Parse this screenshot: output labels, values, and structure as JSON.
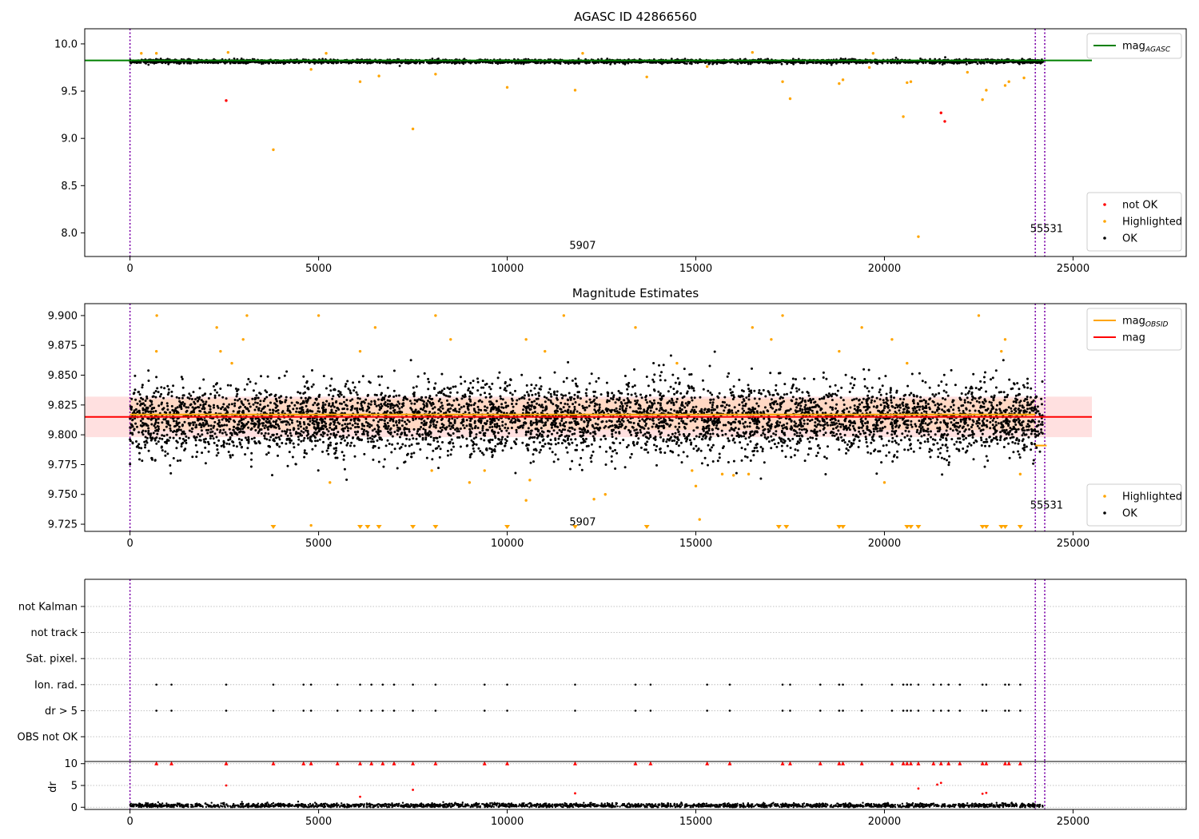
{
  "chart_data": [
    {
      "type": "scatter",
      "title": "AGASC ID 42866560",
      "xlim": [
        -1200,
        28000
      ],
      "ylim": [
        7.75,
        10.16
      ],
      "xticks": [
        0,
        5000,
        10000,
        15000,
        20000,
        25000
      ],
      "yticks": [
        8.0,
        8.5,
        9.0,
        9.5,
        10.0
      ],
      "ytick_labels": [
        "8.0",
        "8.5",
        "9.0",
        "9.5",
        "10.0"
      ],
      "grid": false,
      "vlines": [
        0,
        24000,
        24250
      ],
      "vline_color": "#7b00a8",
      "annotations": [
        {
          "text": "5907",
          "x": 12000,
          "y": 7.83
        },
        {
          "text": "55531",
          "x": 24300,
          "y": 8.01
        }
      ],
      "lines": [
        {
          "name": "mag_AGASC",
          "label_main": "mag",
          "label_sub": "AGASC",
          "color": "#008000",
          "y": 9.825,
          "x_range": [
            -1200,
            25500
          ]
        }
      ],
      "ok_band": {
        "name": "OK",
        "color": "#000000",
        "y_mid": 9.815,
        "y_spread": 0.02,
        "x_range": [
          0,
          24200
        ],
        "n": 3200
      },
      "points": [
        {
          "series": "Highlighted",
          "color": "#ffa500",
          "data": [
            [
              3800,
              8.88
            ],
            [
              7500,
              9.1
            ],
            [
              8100,
              9.68
            ],
            [
              10000,
              9.54
            ],
            [
              11800,
              9.51
            ],
            [
              13700,
              9.65
            ],
            [
              15300,
              9.76
            ],
            [
              17300,
              9.6
            ],
            [
              17500,
              9.42
            ],
            [
              18800,
              9.58
            ],
            [
              18900,
              9.62
            ],
            [
              19600,
              9.75
            ],
            [
              20500,
              9.23
            ],
            [
              20600,
              9.59
            ],
            [
              20700,
              9.6
            ],
            [
              20900,
              7.96
            ],
            [
              22200,
              9.7
            ],
            [
              22600,
              9.41
            ],
            [
              22700,
              9.51
            ],
            [
              23200,
              9.56
            ],
            [
              23300,
              9.6
            ],
            [
              23700,
              9.64
            ],
            [
              4800,
              9.73
            ],
            [
              6100,
              9.6
            ],
            [
              6600,
              9.66
            ],
            [
              300,
              9.9
            ],
            [
              700,
              9.9
            ],
            [
              2600,
              9.91
            ],
            [
              5200,
              9.9
            ],
            [
              12000,
              9.9
            ],
            [
              16500,
              9.91
            ],
            [
              19700,
              9.9
            ]
          ]
        },
        {
          "series": "not OK",
          "color": "#ff0000",
          "data": [
            [
              2550,
              9.4
            ],
            [
              21500,
              9.27
            ],
            [
              21600,
              9.18
            ]
          ]
        }
      ],
      "legends": [
        {
          "placement": "upper-right",
          "entries": [
            {
              "label_main": "mag",
              "label_sub": "AGASC",
              "kind": "line",
              "color": "#008000"
            }
          ]
        },
        {
          "placement": "lower-right",
          "entries": [
            {
              "label": "not OK",
              "kind": "dot",
              "color": "#ff0000"
            },
            {
              "label": "Highlighted",
              "kind": "dot",
              "color": "#ffa500"
            },
            {
              "label": "OK",
              "kind": "dot",
              "color": "#000000"
            }
          ]
        }
      ]
    },
    {
      "type": "scatter",
      "title": "Magnitude Estimates",
      "xlim": [
        -1200,
        28000
      ],
      "ylim": [
        9.719,
        9.91
      ],
      "xticks": [
        0,
        5000,
        10000,
        15000,
        20000,
        25000
      ],
      "yticks": [
        9.725,
        9.75,
        9.775,
        9.8,
        9.825,
        9.85,
        9.875,
        9.9
      ],
      "ytick_labels": [
        "9.725",
        "9.750",
        "9.775",
        "9.800",
        "9.825",
        "9.850",
        "9.875",
        "9.900"
      ],
      "grid": false,
      "vlines": [
        0,
        24000,
        24250
      ],
      "vline_color": "#7b00a8",
      "annotations": [
        {
          "text": "5907",
          "x": 12000,
          "y": 9.724
        },
        {
          "text": "55531",
          "x": 24300,
          "y": 9.738
        }
      ],
      "bands": [
        {
          "color": "#ff0000",
          "opacity": 0.12,
          "y_range": [
            9.798,
            9.832
          ],
          "x_range": [
            -1200,
            25500
          ]
        },
        {
          "color": "#ffa500",
          "opacity": 0.12,
          "y_range": [
            9.804,
            9.83
          ],
          "x_range": [
            0,
            24000
          ]
        }
      ],
      "lines": [
        {
          "name": "mag",
          "label_main": "mag",
          "color": "#ff0000",
          "y": 9.815,
          "x_range": [
            -1200,
            25500
          ]
        },
        {
          "name": "mag_OBSID",
          "label_main": "mag",
          "label_sub": "OBSID",
          "color": "#ffa500",
          "y": 9.817,
          "x_range": [
            0,
            24000
          ]
        },
        {
          "name": "mag_OBSID_last",
          "color": "#ffa500",
          "y": 9.791,
          "x_range": [
            24000,
            24300
          ]
        }
      ],
      "ok_band": {
        "name": "OK",
        "color": "#000000",
        "y_mid": 9.813,
        "y_spread": 0.03,
        "x_range": [
          0,
          24200
        ],
        "n": 5200
      },
      "points": [
        {
          "series": "Highlighted",
          "color": "#ffa500",
          "data": [
            [
              5300,
              9.76
            ],
            [
              8000,
              9.77
            ],
            [
              9000,
              9.76
            ],
            [
              9400,
              9.77
            ],
            [
              10500,
              9.745
            ],
            [
              10600,
              9.762
            ],
            [
              12300,
              9.746
            ],
            [
              12600,
              9.75
            ],
            [
              14900,
              9.77
            ],
            [
              15000,
              9.757
            ],
            [
              15100,
              9.729
            ],
            [
              15700,
              9.767
            ],
            [
              16000,
              9.766
            ],
            [
              16400,
              9.767
            ],
            [
              20000,
              9.76
            ],
            [
              23600,
              9.767
            ],
            [
              4800,
              9.724
            ],
            [
              700,
              9.87
            ],
            [
              710,
              9.9
            ],
            [
              2300,
              9.89
            ],
            [
              2400,
              9.87
            ],
            [
              2700,
              9.86
            ],
            [
              3000,
              9.88
            ],
            [
              3100,
              9.9
            ],
            [
              5000,
              9.9
            ],
            [
              6100,
              9.87
            ],
            [
              6500,
              9.89
            ],
            [
              8100,
              9.9
            ],
            [
              8500,
              9.88
            ],
            [
              10500,
              9.88
            ],
            [
              11000,
              9.87
            ],
            [
              11500,
              9.9
            ],
            [
              13400,
              9.89
            ],
            [
              14500,
              9.86
            ],
            [
              16500,
              9.89
            ],
            [
              17000,
              9.88
            ],
            [
              17300,
              9.9
            ],
            [
              18800,
              9.87
            ],
            [
              19400,
              9.89
            ],
            [
              20200,
              9.88
            ],
            [
              20600,
              9.86
            ],
            [
              22500,
              9.9
            ],
            [
              23100,
              9.87
            ],
            [
              23200,
              9.88
            ]
          ]
        }
      ],
      "clipped_low_x": [
        3800,
        6100,
        6300,
        6600,
        7500,
        8100,
        10000,
        11800,
        13700,
        17200,
        17400,
        18800,
        18900,
        20600,
        20700,
        20900,
        22600,
        22700,
        23100,
        23200,
        23600
      ],
      "legends": [
        {
          "placement": "upper-right",
          "entries": [
            {
              "label_main": "mag",
              "label_sub": "OBSID",
              "kind": "line",
              "color": "#ffa500"
            },
            {
              "label_main": "mag",
              "kind": "line",
              "color": "#ff0000"
            }
          ]
        },
        {
          "placement": "lower-right",
          "entries": [
            {
              "label": "Highlighted",
              "kind": "dot",
              "color": "#ffa500"
            },
            {
              "label": "OK",
              "kind": "dot",
              "color": "#000000"
            }
          ]
        }
      ]
    },
    {
      "type": "scatter",
      "title": "",
      "xlim": [
        -1200,
        28000
      ],
      "categories": [
        "not Kalman",
        "not track",
        "Sat. pixel.",
        "Ion. rad.",
        "dr > 5",
        "OBS not OK"
      ],
      "grid": true,
      "vlines": [
        0,
        24000,
        24250
      ],
      "vline_color": "#7b00a8",
      "flag_x": [
        700,
        1100,
        2550,
        3800,
        4600,
        4800,
        5500,
        6100,
        6400,
        6700,
        7000,
        7500,
        8100,
        9400,
        10000,
        11800,
        13400,
        13800,
        15300,
        15900,
        17300,
        17500,
        18300,
        18800,
        18900,
        19400,
        20200,
        20500,
        20600,
        20700,
        20900,
        21300,
        21500,
        21700,
        22000,
        22600,
        22700,
        23200,
        23300,
        23600
      ],
      "flagged_rows": [
        "Ion. rad.",
        "dr > 5"
      ]
    },
    {
      "type": "scatter",
      "title": "",
      "xlim": [
        -1200,
        28000
      ],
      "ylim": [
        -0.5,
        10.5
      ],
      "xticks": [
        0,
        5000,
        10000,
        15000,
        20000,
        25000
      ],
      "yticks": [
        0,
        5,
        10
      ],
      "ytick_labels": [
        "0",
        "5",
        "10"
      ],
      "ylabel": "dr",
      "grid": true,
      "vlines": [
        0,
        24000,
        24250
      ],
      "vline_color": "#7b00a8",
      "ok_band": {
        "name": "OK",
        "color": "#000000",
        "y_mid": 0.4,
        "y_spread": 0.5,
        "x_range": [
          0,
          24200
        ],
        "n": 2400
      },
      "points": [
        {
          "series": "dr clipped",
          "color": "#ff0000",
          "marker": "triangle",
          "y": 10
        },
        {
          "series": "dr high",
          "color": "#ff0000",
          "data": [
            [
              2550,
              5.0
            ],
            [
              7500,
              4.0
            ],
            [
              11800,
              3.2
            ],
            [
              20900,
              4.3
            ],
            [
              21500,
              5.6
            ],
            [
              21400,
              5.2
            ],
            [
              22600,
              3.1
            ],
            [
              22700,
              3.3
            ],
            [
              6100,
              2.4
            ]
          ]
        }
      ]
    }
  ]
}
